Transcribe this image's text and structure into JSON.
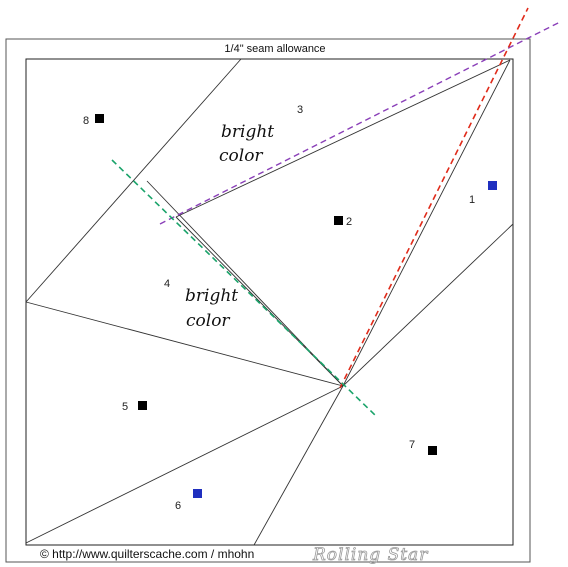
{
  "seam_label": "1/4\" seam allowance",
  "fabric_notes": [
    {
      "line1": "bright",
      "line2": "color"
    },
    {
      "line1": "bright",
      "line2": "color"
    }
  ],
  "pieces": [
    {
      "number": "1",
      "marker_color": "#1f2fbf"
    },
    {
      "number": "2",
      "marker_color": "#000000"
    },
    {
      "number": "3",
      "marker_color": ""
    },
    {
      "number": "4",
      "marker_color": ""
    },
    {
      "number": "5",
      "marker_color": "#000000"
    },
    {
      "number": "6",
      "marker_color": "#1f2fbf"
    },
    {
      "number": "7",
      "marker_color": "#000000"
    },
    {
      "number": "8",
      "marker_color": "#000000"
    }
  ],
  "guide_colors": {
    "purple": "#8a3fb8",
    "red": "#e02b1a",
    "green": "#1aa36a"
  },
  "copyright": "© http://www.quilterscache.com / mhohn",
  "watermark": "Rolling Star"
}
